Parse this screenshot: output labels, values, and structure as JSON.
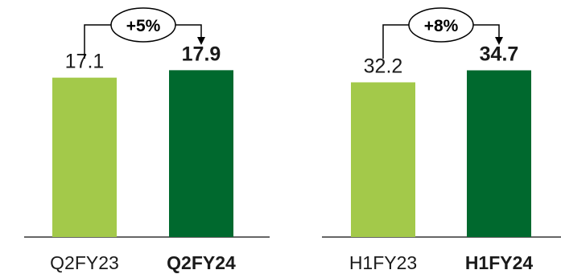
{
  "chart_data": [
    {
      "type": "bar",
      "categories": [
        "Q2FY23",
        "Q2FY24"
      ],
      "values": [
        17.1,
        17.9
      ],
      "value_labels": [
        "17.1",
        "17.9"
      ],
      "bold": [
        false,
        true
      ],
      "colors": [
        "#a3c94a",
        "#00692e"
      ],
      "growth_label": "+5%",
      "ylim": [
        0,
        25
      ],
      "grid": false
    },
    {
      "type": "bar",
      "categories": [
        "H1FY23",
        "H1FY24"
      ],
      "values": [
        32.2,
        34.7
      ],
      "value_labels": [
        "32.2",
        "34.7"
      ],
      "bold": [
        false,
        true
      ],
      "colors": [
        "#a3c94a",
        "#00692e"
      ],
      "growth_label": "+8%",
      "ylim": [
        0,
        48.5
      ],
      "grid": false
    }
  ]
}
